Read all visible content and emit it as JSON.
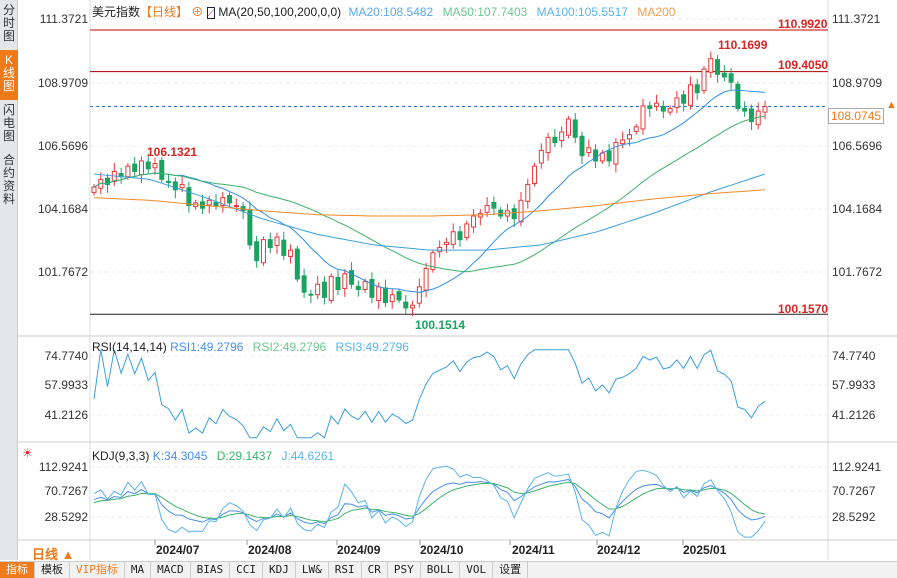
{
  "sidebar": {
    "tabs": [
      "分时图",
      "K线图",
      "闪电图",
      "合约资料"
    ]
  },
  "header": {
    "symbol": "美元指数",
    "period": "【日线】",
    "ma_title": "MA(20,50,100,200,0,0)",
    "ma20": "MA20:108.5482",
    "ma50": "MA50:107.7403",
    "ma100": "MA100:105.5517",
    "ma200": "MA200"
  },
  "price_axis": [
    "111.3721",
    "108.9709",
    "106.5696",
    "104.1684",
    "101.7672"
  ],
  "levels": {
    "l1": "110.9920",
    "l2": "109.4050",
    "l3": "100.1570",
    "current": "108.0745"
  },
  "annotations": {
    "high": "110.1699",
    "local_high": "106.1321",
    "low": "100.1514"
  },
  "rsi": {
    "title": "RSI(14,14,14)",
    "rsi1": "RSI1:49.2796",
    "rsi2": "RSI2:49.2796",
    "rsi3": "RSI3:49.2796",
    "axis": [
      "74.7740",
      "57.9933",
      "41.2126"
    ]
  },
  "kdj": {
    "title": "KDJ(9,3,3)",
    "k": "K:34.3045",
    "d": "D:29.1437",
    "j": "J:44.6261",
    "axis": [
      "112.9241",
      "70.7267",
      "28.5292"
    ]
  },
  "period_selector": "日线 ▲",
  "months": [
    "2024/07",
    "2024/08",
    "2024/09",
    "2024/10",
    "2024/11",
    "2024/12",
    "2025/01"
  ],
  "bottom_tabs": [
    "指标",
    "模板",
    "VIP指标",
    "MA",
    "MACD",
    "BIAS",
    "CCI",
    "KDJ",
    "LW&",
    "RSI",
    "CR",
    "PSY",
    "BOLL",
    "VOL",
    "设置"
  ],
  "colors": {
    "up": "#e8393a",
    "down": "#1aa260",
    "ma20": "#2f8fe6",
    "ma50": "#3bb36a",
    "ma100": "#3aa0dc",
    "ma200": "#f08a2a",
    "accent": "#f07a1a"
  },
  "chart_data": {
    "type": "candlestick",
    "ylim": [
      100.157,
      111.3721
    ],
    "closes": [
      105.0,
      105.3,
      105.1,
      105.6,
      105.4,
      105.8,
      105.6,
      106.0,
      105.7,
      105.9,
      105.3,
      105.2,
      104.9,
      105.1,
      104.3,
      104.4,
      104.2,
      104.5,
      104.3,
      104.6,
      104.4,
      104.3,
      104.1,
      102.8,
      102.2,
      103.0,
      102.7,
      103.1,
      102.4,
      102.6,
      101.5,
      101.0,
      100.9,
      101.3,
      100.8,
      101.6,
      101.1,
      101.7,
      101.3,
      101.1,
      101.4,
      100.8,
      101.2,
      100.6,
      100.9,
      100.7,
      100.4,
      100.5,
      101.2,
      101.9,
      102.5,
      102.7,
      102.9,
      103.3,
      103.0,
      103.6,
      103.9,
      104.0,
      104.3,
      104.2,
      103.9,
      104.1,
      103.8,
      104.5,
      105.1,
      105.8,
      106.4,
      106.9,
      106.7,
      107.1,
      107.6,
      106.9,
      106.2,
      106.5,
      106.0,
      106.3,
      106.0,
      106.7,
      106.8,
      107.0,
      107.3,
      108.1,
      108.0,
      108.2,
      107.9,
      108.0,
      108.4,
      108.2,
      108.9,
      108.6,
      109.5,
      109.9,
      109.3,
      109.2,
      109.0,
      108.0,
      107.9,
      107.5,
      107.9,
      108.07
    ],
    "ma100": [
      105.5,
      105.3,
      104.6,
      103.8,
      103.2,
      102.8,
      102.6,
      102.6,
      102.8,
      103.3,
      104.0,
      104.8,
      105.5
    ],
    "ma200": [
      104.6,
      104.5,
      104.3,
      104.1,
      103.95,
      103.9,
      103.9,
      103.95,
      104.1,
      104.3,
      104.55,
      104.75,
      104.9
    ]
  }
}
